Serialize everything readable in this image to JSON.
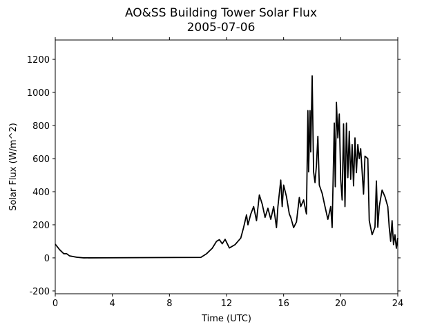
{
  "chart_data": {
    "type": "line",
    "title": "AO&SS Building Tower Solar Flux",
    "subtitle": "2005-07-06",
    "xlabel": "Time (UTC)",
    "ylabel": "Solar Flux (W/m^2)",
    "x": [
      0,
      0.3,
      0.6,
      0.8,
      1.0,
      1.5,
      2,
      10.2,
      10.6,
      11.0,
      11.3,
      11.5,
      11.7,
      11.9,
      12.2,
      12.6,
      12.8,
      13.0,
      13.2,
      13.4,
      13.5,
      13.7,
      13.9,
      14.1,
      14.3,
      14.5,
      14.7,
      14.9,
      15.1,
      15.3,
      15.5,
      15.6,
      15.8,
      15.9,
      16.0,
      16.2,
      16.4,
      16.5,
      16.7,
      16.9,
      17.1,
      17.2,
      17.4,
      17.6,
      17.7,
      17.75,
      17.85,
      17.9,
      18.0,
      18.1,
      18.2,
      18.3,
      18.4,
      18.5,
      18.7,
      18.9,
      19.1,
      19.3,
      19.4,
      19.55,
      19.62,
      19.7,
      19.8,
      19.9,
      20.0,
      20.1,
      20.2,
      20.3,
      20.4,
      20.5,
      20.6,
      20.7,
      20.8,
      20.9,
      21.0,
      21.1,
      21.2,
      21.3,
      21.4,
      21.6,
      21.7,
      21.9,
      22.0,
      22.2,
      22.4,
      22.5,
      22.6,
      22.7,
      22.9,
      23.1,
      23.3,
      23.4,
      23.5,
      23.6,
      23.7,
      23.8,
      23.9,
      24.0
    ],
    "values": [
      83,
      50,
      25,
      25,
      12,
      4,
      0,
      3,
      25,
      58,
      100,
      110,
      85,
      112,
      60,
      80,
      100,
      120,
      185,
      260,
      200,
      265,
      310,
      225,
      380,
      325,
      245,
      300,
      233,
      310,
      183,
      310,
      470,
      310,
      440,
      370,
      265,
      245,
      183,
      217,
      365,
      310,
      350,
      265,
      890,
      520,
      890,
      640,
      1100,
      520,
      455,
      560,
      735,
      440,
      390,
      310,
      233,
      310,
      183,
      815,
      430,
      940,
      725,
      870,
      475,
      350,
      810,
      310,
      815,
      485,
      765,
      475,
      685,
      435,
      725,
      515,
      685,
      600,
      660,
      385,
      615,
      600,
      225,
      140,
      185,
      465,
      185,
      310,
      410,
      370,
      310,
      185,
      100,
      225,
      80,
      140,
      58,
      120
    ],
    "color": "#000000",
    "xlim": [
      0,
      24
    ],
    "xticks": [
      0,
      4,
      8,
      12,
      16,
      20,
      24
    ],
    "ylim": [
      -217,
      1317
    ],
    "yticks": [
      -200,
      0,
      200,
      400,
      600,
      800,
      1000,
      1200
    ],
    "grid": false
  }
}
